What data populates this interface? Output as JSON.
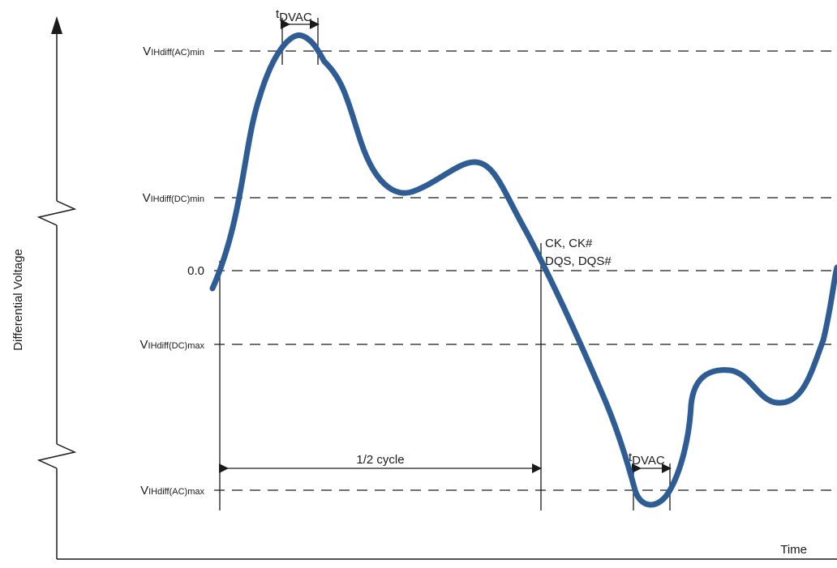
{
  "diagram": {
    "y_axis_label": "Differential Voltage",
    "x_axis_label": "Time",
    "levels": [
      {
        "id": "ac-min",
        "prefix": "V",
        "sub": "IHdiff(AC)min"
      },
      {
        "id": "dc-min",
        "prefix": "V",
        "sub": "IHdiff(DC)min"
      },
      {
        "id": "zero",
        "label": "0.0"
      },
      {
        "id": "dc-max",
        "prefix": "V",
        "sub": "IHdiff(DC)max"
      },
      {
        "id": "ac-max",
        "prefix": "V",
        "sub": "IHdiff(AC)max"
      }
    ],
    "tdvac_top": {
      "t": "t",
      "sub": "DVAC"
    },
    "tdvac_bottom": {
      "t": "t",
      "sub": "DVAC"
    },
    "half_cycle": "1/2 cycle",
    "signal_label_1": "CK, CK#",
    "signal_label_2": "DQS, DQS#",
    "signal_color": "#2e5c94"
  }
}
